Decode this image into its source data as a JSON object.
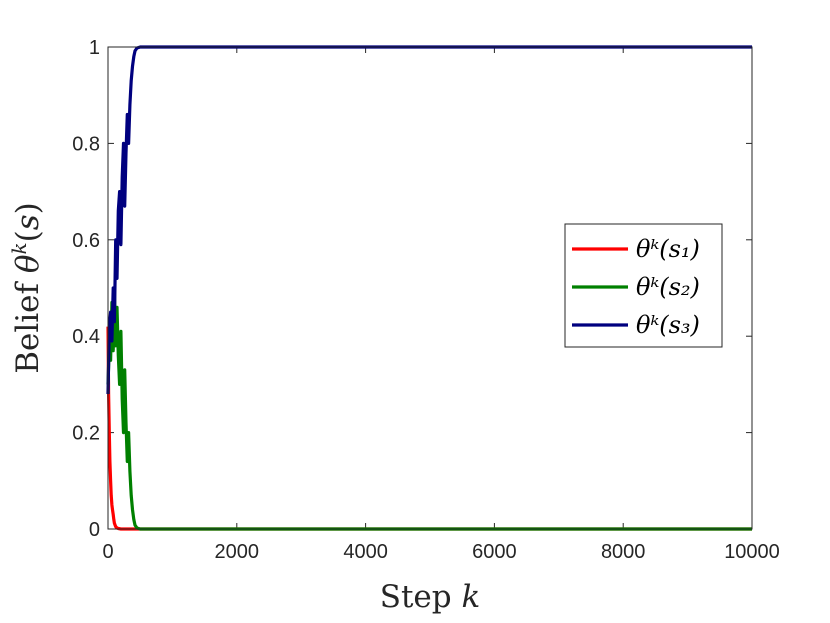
{
  "chart_data": {
    "type": "line",
    "xlabel": "Step k",
    "ylabel": "Belief θᵏ(s)",
    "xlim": [
      0,
      10000
    ],
    "ylim": [
      0,
      1
    ],
    "xticks": [
      0,
      2000,
      4000,
      6000,
      8000,
      10000
    ],
    "yticks": [
      0,
      0.2,
      0.4,
      0.6,
      0.8,
      1
    ],
    "xtick_labels": [
      "0",
      "2000",
      "4000",
      "6000",
      "8000",
      "10000"
    ],
    "ytick_labels": [
      "0",
      "0.2",
      "0.4",
      "0.6",
      "0.8",
      "1"
    ],
    "grid": false,
    "legend_position": "right",
    "series": [
      {
        "name": "θᵏ(s₁)",
        "color": "#ff0000",
        "x": [
          0,
          10,
          20,
          30,
          40,
          50,
          60,
          70,
          80,
          90,
          100,
          110,
          120,
          140,
          160,
          200,
          300,
          500,
          10000
        ],
        "y": [
          0.42,
          0.28,
          0.2,
          0.14,
          0.1,
          0.07,
          0.05,
          0.04,
          0.03,
          0.02,
          0.012,
          0.008,
          0.005,
          0.002,
          0.001,
          0,
          0,
          0,
          0
        ]
      },
      {
        "name": "θᵏ(s₂)",
        "color": "#008000",
        "x": [
          0,
          20,
          40,
          60,
          80,
          100,
          120,
          140,
          160,
          180,
          200,
          220,
          240,
          260,
          280,
          300,
          320,
          340,
          360,
          380,
          400,
          420,
          450,
          500,
          10000
        ],
        "y": [
          0.3,
          0.38,
          0.35,
          0.47,
          0.37,
          0.5,
          0.38,
          0.46,
          0.36,
          0.3,
          0.41,
          0.27,
          0.2,
          0.33,
          0.22,
          0.14,
          0.2,
          0.12,
          0.07,
          0.04,
          0.02,
          0.008,
          0.002,
          0,
          0
        ]
      },
      {
        "name": "θᵏ(s₃)",
        "color": "#00007f",
        "x": [
          0,
          20,
          40,
          60,
          80,
          100,
          120,
          140,
          160,
          180,
          200,
          220,
          240,
          260,
          280,
          300,
          320,
          340,
          360,
          380,
          400,
          420,
          450,
          500,
          10000
        ],
        "y": [
          0.28,
          0.42,
          0.45,
          0.39,
          0.5,
          0.43,
          0.6,
          0.52,
          0.66,
          0.7,
          0.59,
          0.73,
          0.8,
          0.67,
          0.78,
          0.86,
          0.8,
          0.88,
          0.93,
          0.96,
          0.98,
          0.992,
          0.998,
          1,
          1
        ]
      }
    ]
  }
}
